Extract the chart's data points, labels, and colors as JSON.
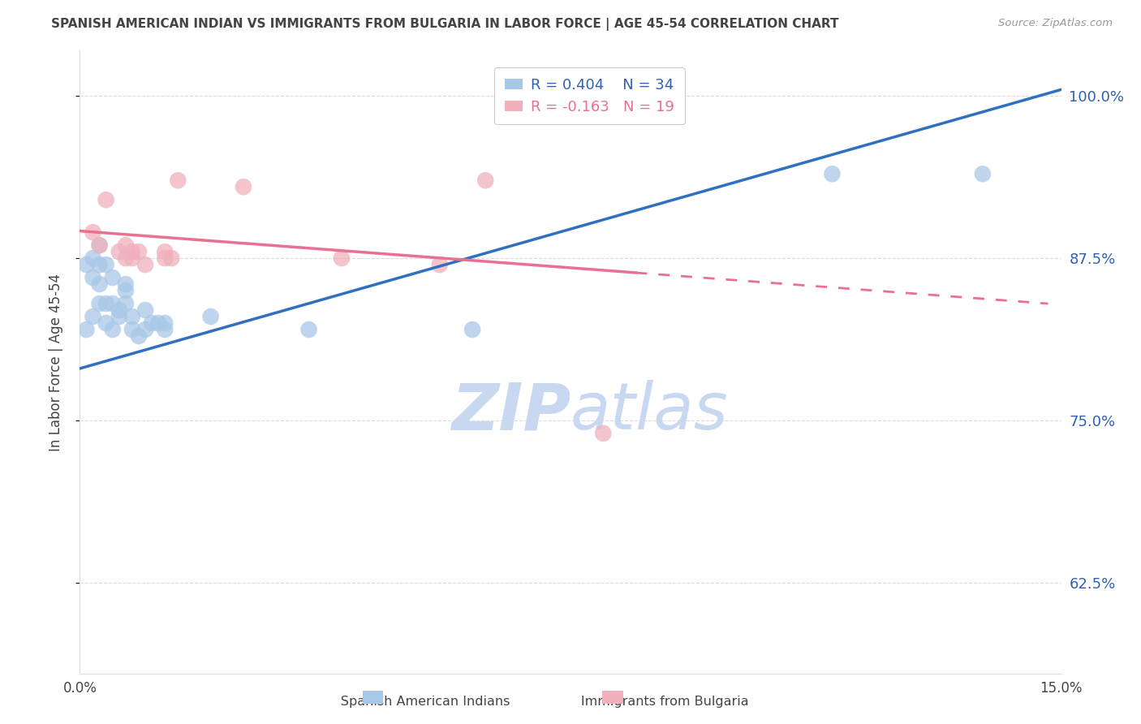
{
  "title": "SPANISH AMERICAN INDIAN VS IMMIGRANTS FROM BULGARIA IN LABOR FORCE | AGE 45-54 CORRELATION CHART",
  "source": "Source: ZipAtlas.com",
  "ylabel": "In Labor Force | Age 45-54",
  "xlim": [
    0.0,
    0.15
  ],
  "ylim": [
    0.555,
    1.035
  ],
  "yticks": [
    0.625,
    0.75,
    0.875,
    1.0
  ],
  "ytick_labels": [
    "62.5%",
    "75.0%",
    "87.5%",
    "100.0%"
  ],
  "xticks": [
    0.0,
    0.025,
    0.05,
    0.075,
    0.1,
    0.125,
    0.15
  ],
  "xtick_labels": [
    "0.0%",
    "",
    "",
    "",
    "",
    "",
    "15.0%"
  ],
  "blue_R": 0.404,
  "blue_N": 34,
  "pink_R": -0.163,
  "pink_N": 19,
  "blue_scatter_x": [
    0.001,
    0.001,
    0.002,
    0.002,
    0.002,
    0.003,
    0.003,
    0.003,
    0.003,
    0.004,
    0.004,
    0.004,
    0.005,
    0.005,
    0.005,
    0.006,
    0.006,
    0.007,
    0.007,
    0.007,
    0.008,
    0.008,
    0.009,
    0.01,
    0.01,
    0.011,
    0.012,
    0.013,
    0.013,
    0.02,
    0.035,
    0.06,
    0.115,
    0.138
  ],
  "blue_scatter_y": [
    0.82,
    0.87,
    0.83,
    0.875,
    0.86,
    0.84,
    0.855,
    0.87,
    0.885,
    0.825,
    0.84,
    0.87,
    0.82,
    0.84,
    0.86,
    0.83,
    0.835,
    0.84,
    0.85,
    0.855,
    0.82,
    0.83,
    0.815,
    0.82,
    0.835,
    0.825,
    0.825,
    0.82,
    0.825,
    0.83,
    0.82,
    0.82,
    0.94,
    0.94
  ],
  "pink_scatter_x": [
    0.002,
    0.003,
    0.004,
    0.006,
    0.007,
    0.007,
    0.008,
    0.008,
    0.009,
    0.01,
    0.013,
    0.013,
    0.014,
    0.015,
    0.025,
    0.04,
    0.055,
    0.062,
    0.08
  ],
  "pink_scatter_y": [
    0.895,
    0.885,
    0.92,
    0.88,
    0.875,
    0.885,
    0.875,
    0.88,
    0.88,
    0.87,
    0.875,
    0.88,
    0.875,
    0.935,
    0.93,
    0.875,
    0.87,
    0.935,
    0.74
  ],
  "blue_line_x0": 0.0,
  "blue_line_x1": 0.15,
  "blue_line_y0": 0.79,
  "blue_line_y1": 1.005,
  "pink_line_solid_x0": 0.0,
  "pink_line_solid_x1": 0.085,
  "pink_line_dashed_x0": 0.085,
  "pink_line_dashed_x1": 0.148,
  "pink_line_y0": 0.896,
  "pink_line_y1": 0.84,
  "blue_color": "#a8c8e8",
  "blue_line_color": "#3070c0",
  "pink_color": "#f0b0bc",
  "pink_line_color": "#e87090",
  "title_color": "#444444",
  "axis_label_color": "#444444",
  "tick_color_right": "#3060b0",
  "tick_color_bottom": "#444444",
  "grid_color": "#cccccc",
  "legend_blue_text_color": "#3060b0",
  "legend_pink_text_color": "#e87090",
  "watermark_zip_color": "#c8d8f0",
  "watermark_atlas_color": "#c8d8f0"
}
